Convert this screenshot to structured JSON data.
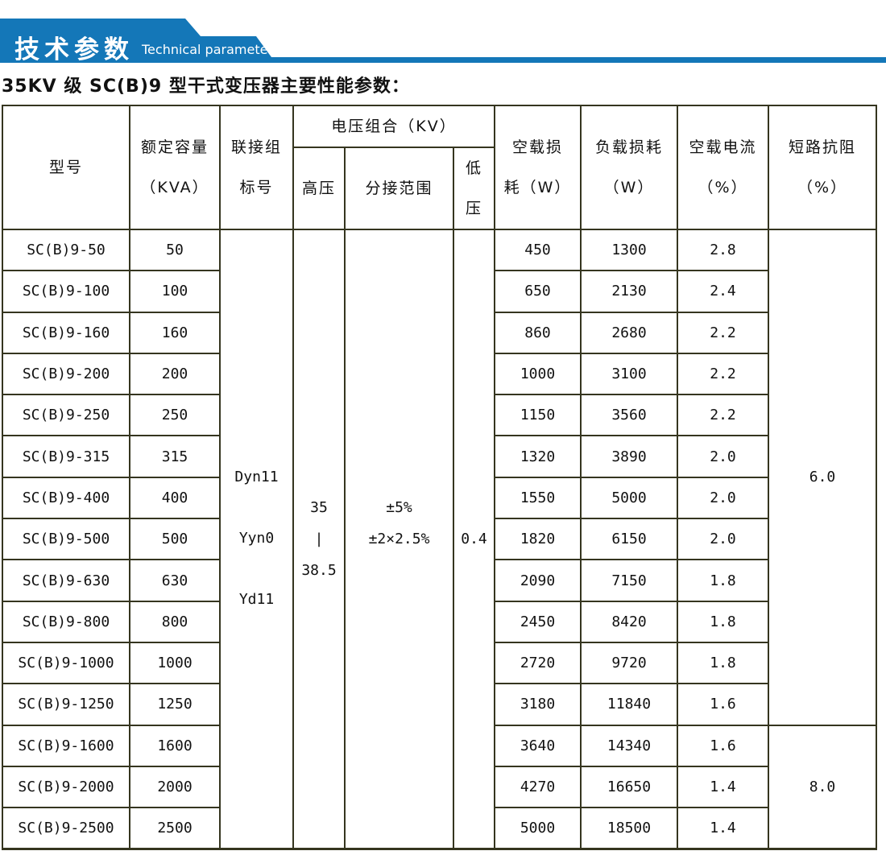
{
  "banner": {
    "title_cn": "技术参数",
    "title_en": "Technical parameter",
    "color": "#1477b8"
  },
  "page_title": "35KV 级 SC(B)9 型干式变压器主要性能参数：",
  "table": {
    "headers": {
      "model": "型号",
      "capacity": "额定容量\n（KVA）",
      "connection": "联接组\n标号",
      "voltage_group": "电压组合（KV）",
      "hv": "高压",
      "tap_range": "分接范围",
      "lv": "低\n压",
      "no_load_loss": "空载损\n耗（W）",
      "load_loss": "负载损耗\n（W）",
      "no_load_current": "空载电流\n（%）",
      "impedance": "短路抗阻\n（%）"
    },
    "merged": {
      "connection": "Dyn11\n\nYyn0\n\nYd11",
      "hv": "35\n|\n38.5",
      "tap_range": "±5%\n±2×2.5%",
      "lv": "0.4",
      "impedance_top": "6.0",
      "impedance_top_rows": 12,
      "impedance_bottom": "8.0",
      "impedance_bottom_rows": 3
    },
    "rows": [
      [
        "SC(B)9-50",
        "50",
        "450",
        "1300",
        "2.8"
      ],
      [
        "SC(B)9-100",
        "100",
        "650",
        "2130",
        "2.4"
      ],
      [
        "SC(B)9-160",
        "160",
        "860",
        "2680",
        "2.2"
      ],
      [
        "SC(B)9-200",
        "200",
        "1000",
        "3100",
        "2.2"
      ],
      [
        "SC(B)9-250",
        "250",
        "1150",
        "3560",
        "2.2"
      ],
      [
        "SC(B)9-315",
        "315",
        "1320",
        "3890",
        "2.0"
      ],
      [
        "SC(B)9-400",
        "400",
        "1550",
        "5000",
        "2.0"
      ],
      [
        "SC(B)9-500",
        "500",
        "1820",
        "6150",
        "2.0"
      ],
      [
        "SC(B)9-630",
        "630",
        "2090",
        "7150",
        "1.8"
      ],
      [
        "SC(B)9-800",
        "800",
        "2450",
        "8420",
        "1.8"
      ],
      [
        "SC(B)9-1000",
        "1000",
        "2720",
        "9720",
        "1.8"
      ],
      [
        "SC(B)9-1250",
        "1250",
        "3180",
        "11840",
        "1.6"
      ],
      [
        "SC(B)9-1600",
        "1600",
        "3640",
        "14340",
        "1.6"
      ],
      [
        "SC(B)9-2000",
        "2000",
        "4270",
        "16650",
        "1.4"
      ],
      [
        "SC(B)9-2500",
        "2500",
        "5000",
        "18500",
        "1.4"
      ]
    ]
  }
}
